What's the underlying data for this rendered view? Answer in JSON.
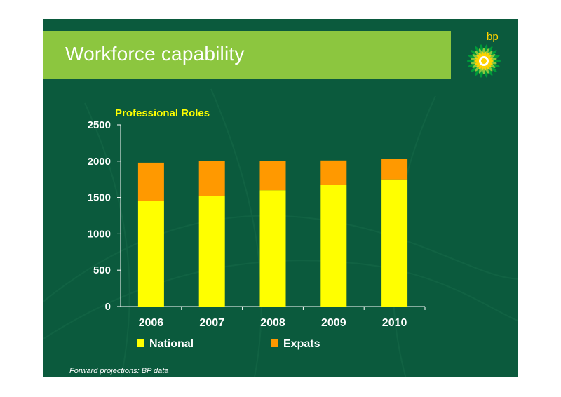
{
  "slide": {
    "title": "Workforce capability",
    "logo_text": "bp",
    "footnote": "Forward projections: BP data"
  },
  "icons": {
    "logo": "bp-helios-logo"
  },
  "colors": {
    "background": "#0b5a3d",
    "title_band": "#8cc63f",
    "national": "#ffff00",
    "expats": "#ff9900",
    "chart_title": "#ffff00",
    "axis_text": "#ffffff"
  },
  "chart_data": {
    "type": "bar",
    "stacked": true,
    "title": "Professional Roles",
    "categories": [
      "2006",
      "2007",
      "2008",
      "2009",
      "2010"
    ],
    "series": [
      {
        "name": "National",
        "values": [
          1450,
          1520,
          1600,
          1670,
          1750
        ]
      },
      {
        "name": "Expats",
        "values": [
          530,
          480,
          400,
          340,
          280
        ]
      }
    ],
    "ylim": [
      0,
      2500
    ],
    "yticks": [
      "0",
      "500",
      "1000",
      "1500",
      "2000",
      "2500"
    ],
    "xlabel": "",
    "ylabel": "",
    "grid": false,
    "legend_position": "bottom"
  }
}
